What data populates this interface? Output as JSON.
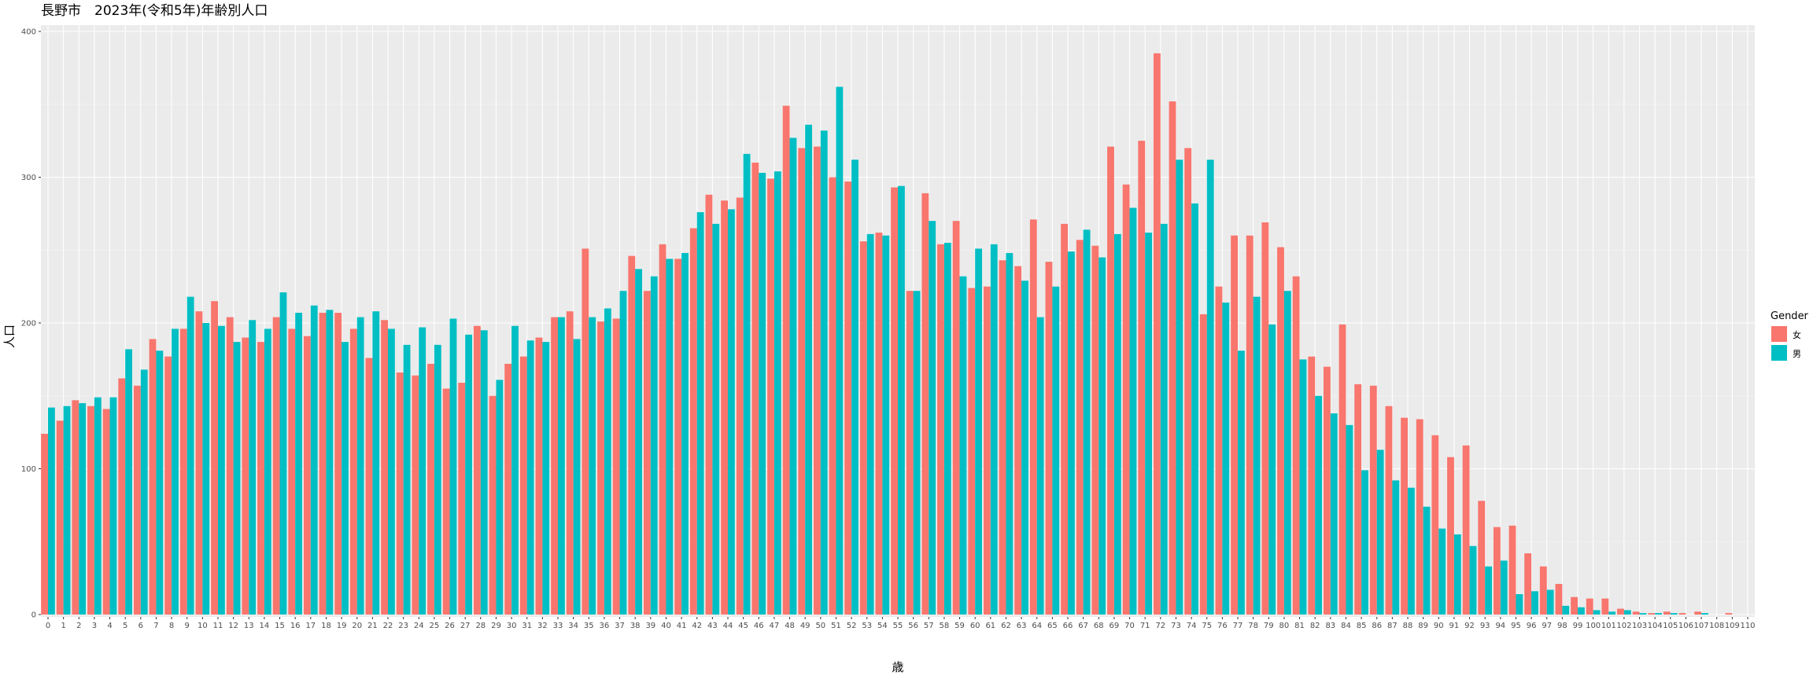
{
  "chart_data": {
    "type": "bar",
    "title": "長野市　2023年(令和5年)年齢別人口",
    "xlabel": "歳",
    "ylabel": "人口",
    "ylim": [
      0,
      400
    ],
    "yticks": [
      0,
      100,
      200,
      300,
      400
    ],
    "grid": true,
    "legend": {
      "title": "Gender",
      "position": "right"
    },
    "categories": [
      "0",
      "1",
      "2",
      "3",
      "4",
      "5",
      "6",
      "7",
      "8",
      "9",
      "10",
      "11",
      "12",
      "13",
      "14",
      "15",
      "16",
      "17",
      "18",
      "19",
      "20",
      "21",
      "22",
      "23",
      "24",
      "25",
      "26",
      "27",
      "28",
      "29",
      "30",
      "31",
      "32",
      "33",
      "34",
      "35",
      "36",
      "37",
      "38",
      "39",
      "40",
      "41",
      "42",
      "43",
      "44",
      "45",
      "46",
      "47",
      "48",
      "49",
      "50",
      "51",
      "52",
      "53",
      "54",
      "55",
      "56",
      "57",
      "58",
      "59",
      "60",
      "61",
      "62",
      "63",
      "64",
      "65",
      "66",
      "67",
      "68",
      "69",
      "70",
      "71",
      "72",
      "73",
      "74",
      "75",
      "76",
      "77",
      "78",
      "79",
      "80",
      "81",
      "82",
      "83",
      "84",
      "85",
      "86",
      "87",
      "88",
      "89",
      "90",
      "91",
      "92",
      "93",
      "94",
      "95",
      "96",
      "97",
      "98",
      "99",
      "100",
      "101",
      "102",
      "103",
      "104",
      "105",
      "106",
      "107",
      "108",
      "109",
      "110"
    ],
    "series": [
      {
        "name": "女",
        "color": "#F8766D",
        "values": [
          124,
          133,
          147,
          143,
          141,
          162,
          157,
          189,
          177,
          196,
          208,
          215,
          204,
          190,
          187,
          204,
          196,
          191,
          207,
          207,
          196,
          176,
          202,
          166,
          164,
          172,
          155,
          159,
          198,
          150,
          172,
          177,
          190,
          204,
          208,
          251,
          201,
          203,
          246,
          222,
          254,
          244,
          265,
          288,
          284,
          286,
          310,
          299,
          349,
          320,
          321,
          300,
          297,
          256,
          262,
          293,
          222,
          289,
          254,
          270,
          224,
          225,
          243,
          239,
          271,
          242,
          268,
          257,
          253,
          321,
          295,
          325,
          385,
          352,
          320,
          206,
          225,
          260,
          260,
          269,
          252,
          232,
          177,
          170,
          199,
          158,
          157,
          143,
          135,
          134,
          123,
          108,
          116,
          78,
          60,
          61,
          42,
          33,
          21,
          12,
          11,
          11,
          4,
          2,
          1,
          2,
          1,
          2,
          0,
          1,
          0
        ]
      },
      {
        "name": "男",
        "color": "#00BFC4",
        "values": [
          142,
          143,
          145,
          149,
          149,
          182,
          168,
          181,
          196,
          218,
          200,
          198,
          187,
          202,
          196,
          221,
          207,
          212,
          209,
          187,
          204,
          208,
          196,
          185,
          197,
          185,
          203,
          192,
          195,
          161,
          198,
          188,
          187,
          204,
          189,
          204,
          210,
          222,
          237,
          232,
          244,
          248,
          276,
          268,
          278,
          316,
          303,
          304,
          327,
          336,
          332,
          362,
          312,
          261,
          260,
          294,
          222,
          270,
          255,
          232,
          251,
          254,
          248,
          229,
          204,
          225,
          249,
          264,
          245,
          261,
          279,
          262,
          268,
          312,
          282,
          312,
          214,
          181,
          218,
          199,
          222,
          175,
          150,
          138,
          130,
          99,
          113,
          92,
          87,
          74,
          59,
          55,
          47,
          33,
          37,
          14,
          16,
          17,
          6,
          5,
          3,
          2,
          3,
          1,
          1,
          1,
          0,
          1,
          0,
          0,
          0
        ]
      }
    ]
  }
}
